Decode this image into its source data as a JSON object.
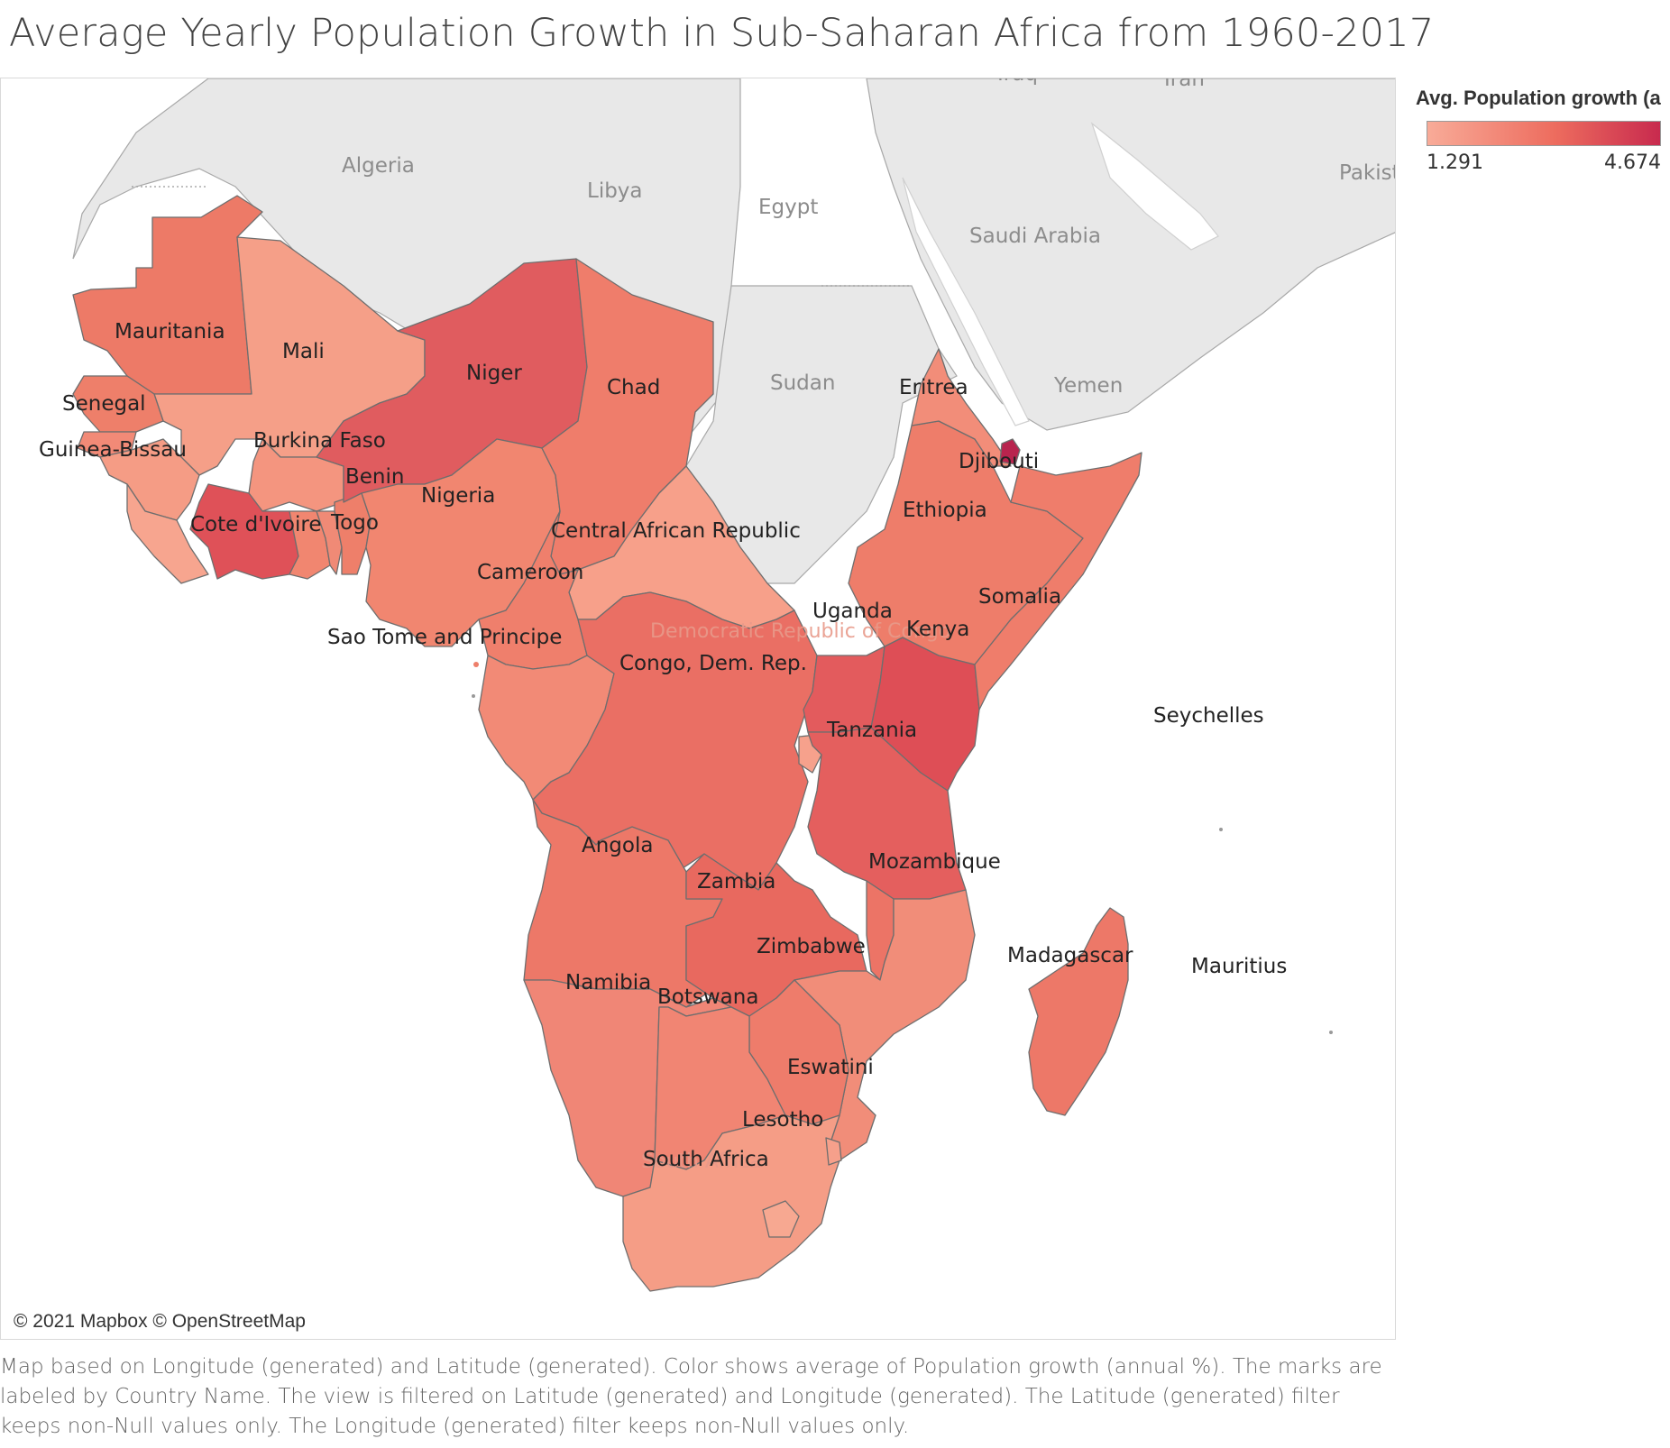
{
  "title": "Average Yearly Population Growth in Sub-Saharan Africa from 1960-2017",
  "legend": {
    "title": "Avg. Population growth (annual %)",
    "min_label": "1.291",
    "max_label": "4.674"
  },
  "attribution": "© 2021 Mapbox © OpenStreetMap",
  "caption": "Map based on Longitude (generated) and Latitude (generated).  Color shows average of Population growth (annual %).  The marks are labeled by Country Name. The view is filtered on Latitude (generated) and Longitude (generated). The Latitude (generated) filter keeps non-Null values only. The Longitude (generated) filter keeps non-Null values only.",
  "colors": {
    "scale_min": "#f8ab98",
    "scale_max": "#c82a4e",
    "basemap_land": "#e8e8e8",
    "basemap_border": "#a8a8a8"
  },
  "basemap_labels": {
    "algeria": "Algeria",
    "libya": "Libya",
    "egypt": "Egypt",
    "saudi_arabia": "Saudi Arabia",
    "sudan": "Sudan",
    "yemen": "Yemen",
    "iraq": "Iraq",
    "iran": "Iran",
    "pakistan": "Pakist",
    "drc_base": "Democratic Republic of Congo",
    "south_africa_base": "South Africa"
  },
  "countries": {
    "mauritania": "Mauritania",
    "mali": "Mali",
    "niger": "Niger",
    "chad": "Chad",
    "senegal": "Senegal",
    "guinea_bissau": "Guinea-Bissau",
    "burkina_faso": "Burkina Faso",
    "benin": "Benin",
    "nigeria": "Nigeria",
    "cote_divoire": "Cote d'Ivoire",
    "togo": "Togo",
    "central_african_republic": "Central African Republic",
    "cameroon": "Cameroon",
    "sao_tome": "Sao Tome and Principe",
    "congo_dem_rep": "Congo, Dem. Rep.",
    "uganda": "Uganda",
    "kenya": "Kenya",
    "somalia": "Somalia",
    "ethiopia": "Ethiopia",
    "eritrea": "Eritrea",
    "djibouti": "Djibouti",
    "tanzania": "Tanzania",
    "seychelles": "Seychelles",
    "angola": "Angola",
    "zambia": "Zambia",
    "mozambique": "Mozambique",
    "zimbabwe": "Zimbabwe",
    "madagascar": "Madagascar",
    "mauritius": "Mauritius",
    "namibia": "Namibia",
    "botswana": "Botswana",
    "eswatini": "Eswatini",
    "lesotho": "Lesotho",
    "south_africa": "South Africa"
  }
}
